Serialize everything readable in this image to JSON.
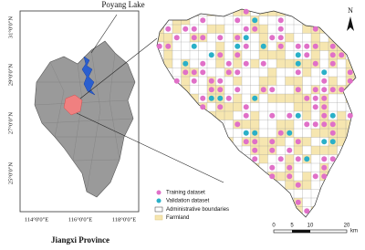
{
  "overview": {
    "lake_label": "Poyang Lake",
    "title": "Jiangxi Province",
    "lat_labels": [
      "31°0'0\"N",
      "29°0'0\"N",
      "27°0'0\"N",
      "25°0'0\"N"
    ],
    "lon_labels": [
      "114°0'0\"E",
      "116°0'0\"E",
      "118°0'0\"E"
    ]
  },
  "detail": {
    "north": "N",
    "legend": [
      "Training dataset",
      "Validation dataset",
      "Administrative boundaries",
      "Farmland"
    ],
    "scale_bar": {
      "ticks": [
        0,
        5,
        10,
        20
      ],
      "unit": "km"
    }
  }
}
